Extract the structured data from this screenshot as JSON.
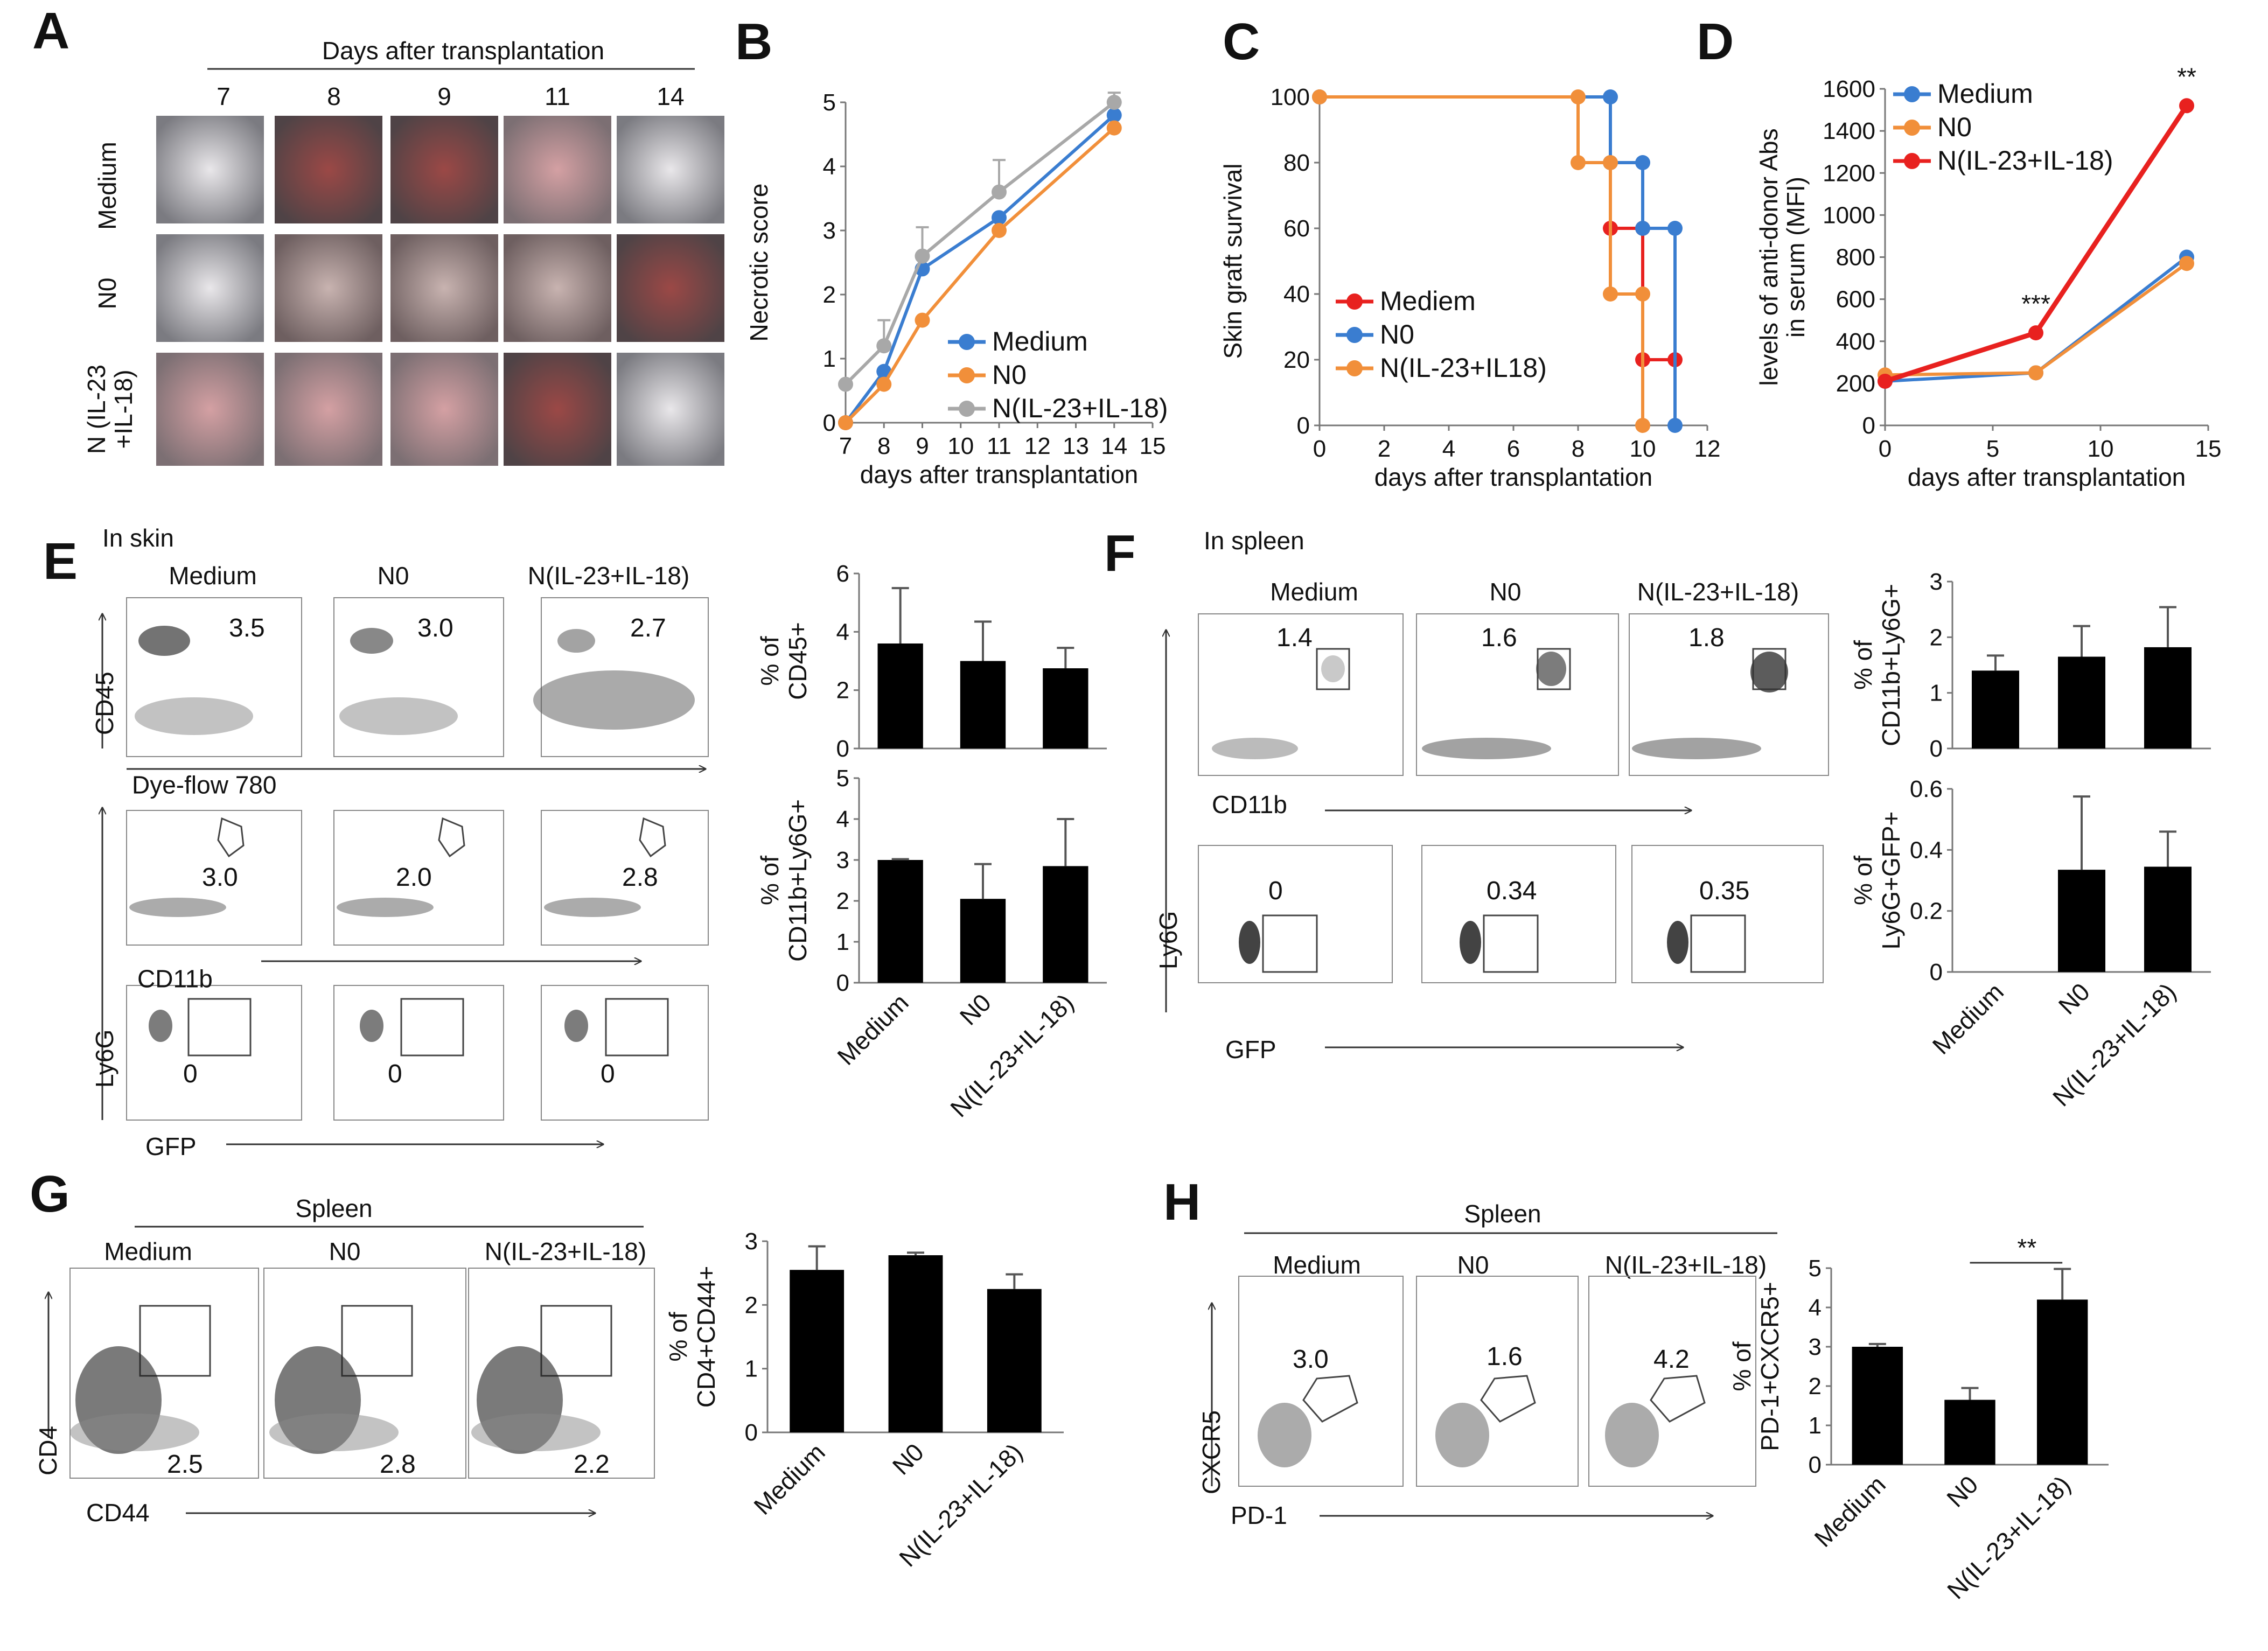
{
  "panels": {
    "A": "A",
    "B": "B",
    "C": "C",
    "D": "D",
    "E": "E",
    "F": "F",
    "G": "G",
    "H": "H"
  },
  "panel_a": {
    "header": "Days after transplantation",
    "days": [
      "7",
      "8",
      "9",
      "11",
      "14"
    ],
    "rows": [
      "Medium",
      "N0",
      "N (IL-23\n+IL-18)"
    ]
  },
  "panel_e": {
    "subtitle": "In skin",
    "groups": [
      "Medium",
      "N0",
      "N(IL-23+IL-18)"
    ],
    "row1": {
      "y_axis": "CD45",
      "x_axis": "Dye-flow 780",
      "values": [
        "3.5",
        "3.0",
        "2.7"
      ]
    },
    "row2": {
      "x_axis": "CD11b",
      "values": [
        "3.0",
        "2.0",
        "2.8"
      ]
    },
    "row3": {
      "x_axis": "GFP",
      "values": [
        "0",
        "0",
        "0"
      ]
    },
    "shared_y_axis": "Ly6G"
  },
  "panel_f": {
    "subtitle": "In spleen",
    "groups": [
      "Medium",
      "N0",
      "N(IL-23+IL-18)"
    ],
    "row1": {
      "x_axis": "CD11b",
      "values": [
        "1.4",
        "1.6",
        "1.8"
      ]
    },
    "row2": {
      "x_axis": "GFP",
      "values": [
        "0",
        "0.34",
        "0.35"
      ]
    },
    "shared_y_axis": "Ly6G"
  },
  "panel_g": {
    "header": "Spleen",
    "groups": [
      "Medium",
      "N0",
      "N(IL-23+IL-18)"
    ],
    "y_axis": "CD4",
    "x_axis": "CD44",
    "values": [
      "2.5",
      "2.8",
      "2.2"
    ]
  },
  "panel_h": {
    "header": "Spleen",
    "groups": [
      "Medium",
      "N0",
      "N(IL-23+IL-18)"
    ],
    "y_axis": "CXCR5",
    "x_axis": "PD-1",
    "values": [
      "3.0",
      "1.6",
      "4.2"
    ]
  },
  "chart_data": [
    {
      "id": "B",
      "type": "line",
      "xlabel": "days after transplantation",
      "ylabel": "Necrotic score",
      "xlim": [
        7,
        15
      ],
      "ylim": [
        0,
        5
      ],
      "xticks": [
        7,
        8,
        9,
        10,
        11,
        12,
        13,
        14,
        15
      ],
      "yticks": [
        0,
        1,
        2,
        3,
        4,
        5
      ],
      "x": [
        7,
        8,
        9,
        11,
        14
      ],
      "series": [
        {
          "name": "Medium",
          "color": "#3a7dd0",
          "values": [
            0,
            0.8,
            2.4,
            3.2,
            4.8
          ],
          "errors": [
            0,
            0,
            0,
            0,
            0
          ]
        },
        {
          "name": "N0",
          "color": "#f18f3a",
          "values": [
            0,
            0.6,
            1.6,
            3.0,
            4.6
          ],
          "errors": [
            0,
            0,
            0,
            0,
            0
          ]
        },
        {
          "name": "N(IL-23+IL-18)",
          "color": "#a8a8a8",
          "values": [
            0.6,
            1.2,
            2.6,
            3.6,
            5.0
          ],
          "errors": [
            0,
            0.4,
            0.45,
            0.5,
            0.15
          ]
        }
      ],
      "legend": "bottom-right"
    },
    {
      "id": "C",
      "type": "line",
      "xlabel": "days after transplantation",
      "ylabel": "Skin graft survival",
      "xlim": [
        0,
        12
      ],
      "ylim": [
        0,
        100
      ],
      "xticks": [
        0,
        2,
        4,
        6,
        8,
        10,
        12
      ],
      "yticks": [
        0,
        20,
        40,
        60,
        80,
        100
      ],
      "series": [
        {
          "name": "Mediem",
          "color": "#e8211f",
          "x": [
            0,
            9,
            9,
            10,
            10,
            11
          ],
          "values": [
            100,
            100,
            60,
            60,
            20,
            20
          ]
        },
        {
          "name": "N0",
          "color": "#3a7dd0",
          "x": [
            0,
            9,
            9,
            10,
            10,
            11,
            11
          ],
          "values": [
            100,
            100,
            80,
            80,
            60,
            60,
            0
          ]
        },
        {
          "name": "N(IL-23+IL18)",
          "color": "#f18f3a",
          "x": [
            0,
            8,
            8,
            9,
            9,
            10,
            10
          ],
          "values": [
            100,
            100,
            80,
            80,
            40,
            40,
            0
          ]
        }
      ],
      "legend": "center-left"
    },
    {
      "id": "D",
      "type": "line",
      "xlabel": "days after transplantation",
      "ylabel": "levels of anti-donor Abs in serum (MFI)",
      "ylabel_lines": [
        "levels of anti-donor Abs",
        "in serum (MFI)"
      ],
      "xlim": [
        0,
        15
      ],
      "ylim": [
        0,
        1600
      ],
      "xticks": [
        0,
        5,
        10,
        15
      ],
      "yticks": [
        0,
        200,
        400,
        600,
        800,
        1000,
        1200,
        1400,
        1600
      ],
      "x": [
        0,
        7,
        14
      ],
      "series": [
        {
          "name": "Medium",
          "color": "#3a7dd0",
          "values": [
            210,
            250,
            800
          ]
        },
        {
          "name": "N0",
          "color": "#f18f3a",
          "values": [
            240,
            250,
            770
          ]
        },
        {
          "name": "N(IL-23+IL-18)",
          "color": "#e8211f",
          "values": [
            210,
            440,
            1520
          ]
        }
      ],
      "annotations": [
        {
          "x": 7,
          "y": 440,
          "text": "***"
        },
        {
          "x": 14,
          "y": 1520,
          "text": "**"
        }
      ],
      "legend": "top-left"
    },
    {
      "id": "E1",
      "type": "bar",
      "ylabel": "% of CD45+",
      "ylabel_lines": [
        "% of",
        "CD45+"
      ],
      "categories": [
        "Medium",
        "N0",
        "N(IL-23+IL-18)"
      ],
      "values": [
        3.6,
        3.0,
        2.75
      ],
      "errors": [
        1.9,
        1.35,
        0.7
      ],
      "ylim": [
        0,
        6
      ],
      "yticks": [
        0,
        2,
        4,
        6
      ],
      "show_xlabels": false
    },
    {
      "id": "E2",
      "type": "bar",
      "ylabel": "% of CD11b+Ly6G+",
      "ylabel_lines": [
        "% of",
        "CD11b+Ly6G+"
      ],
      "categories": [
        "Medium",
        "N0",
        "N(IL-23+IL-18)"
      ],
      "values": [
        3.0,
        2.05,
        2.85
      ],
      "errors": [
        0.02,
        0.85,
        1.15
      ],
      "ylim": [
        0,
        5
      ],
      "yticks": [
        0,
        1,
        2,
        3,
        4,
        5
      ],
      "show_xlabels": true
    },
    {
      "id": "F1",
      "type": "bar",
      "ylabel": "% of CD11b+Ly6G+",
      "ylabel_lines": [
        "% of",
        "CD11b+Ly6G+"
      ],
      "categories": [
        "Medium",
        "N0",
        "N(IL-23+IL-18)"
      ],
      "values": [
        1.4,
        1.65,
        1.82
      ],
      "errors": [
        0.27,
        0.55,
        0.72
      ],
      "ylim": [
        0,
        3
      ],
      "yticks": [
        0,
        1,
        2,
        3
      ],
      "show_xlabels": false
    },
    {
      "id": "F2",
      "type": "bar",
      "ylabel": "% of Ly6G+GFP+",
      "ylabel_lines": [
        "% of",
        "Ly6G+GFP+"
      ],
      "categories": [
        "Medium",
        "N0",
        "N(IL-23+IL-18)"
      ],
      "values": [
        0,
        0.335,
        0.345
      ],
      "errors": [
        0,
        0.24,
        0.115
      ],
      "ylim": [
        0,
        0.6
      ],
      "yticks": [
        0,
        0.2,
        0.4,
        0.6
      ],
      "ytick_labels": [
        "0",
        "0.2",
        "0.4",
        "0.6"
      ],
      "show_xlabels": true
    },
    {
      "id": "G",
      "type": "bar",
      "ylabel": "% of CD4+CD44+",
      "ylabel_lines": [
        "% of",
        "CD4+CD44+"
      ],
      "categories": [
        "Medium",
        "N0",
        "N(IL-23+IL-18)"
      ],
      "values": [
        2.55,
        2.78,
        2.25
      ],
      "errors": [
        0.37,
        0.04,
        0.23
      ],
      "ylim": [
        0,
        3
      ],
      "yticks": [
        0,
        1,
        2,
        3
      ],
      "show_xlabels": true
    },
    {
      "id": "H",
      "type": "bar",
      "ylabel": "% of PD-1+CXCR5+",
      "ylabel_lines": [
        "% of",
        "PD-1+CXCR5+"
      ],
      "categories": [
        "Medium",
        "N0",
        "N(IL-23+IL-18)"
      ],
      "values": [
        3.0,
        1.65,
        4.2
      ],
      "errors": [
        0.07,
        0.3,
        0.78
      ],
      "ylim": [
        0,
        5
      ],
      "yticks": [
        0,
        1,
        2,
        3,
        4,
        5
      ],
      "show_xlabels": true,
      "significance": {
        "from": 1,
        "to": 2,
        "text": "**"
      }
    }
  ]
}
